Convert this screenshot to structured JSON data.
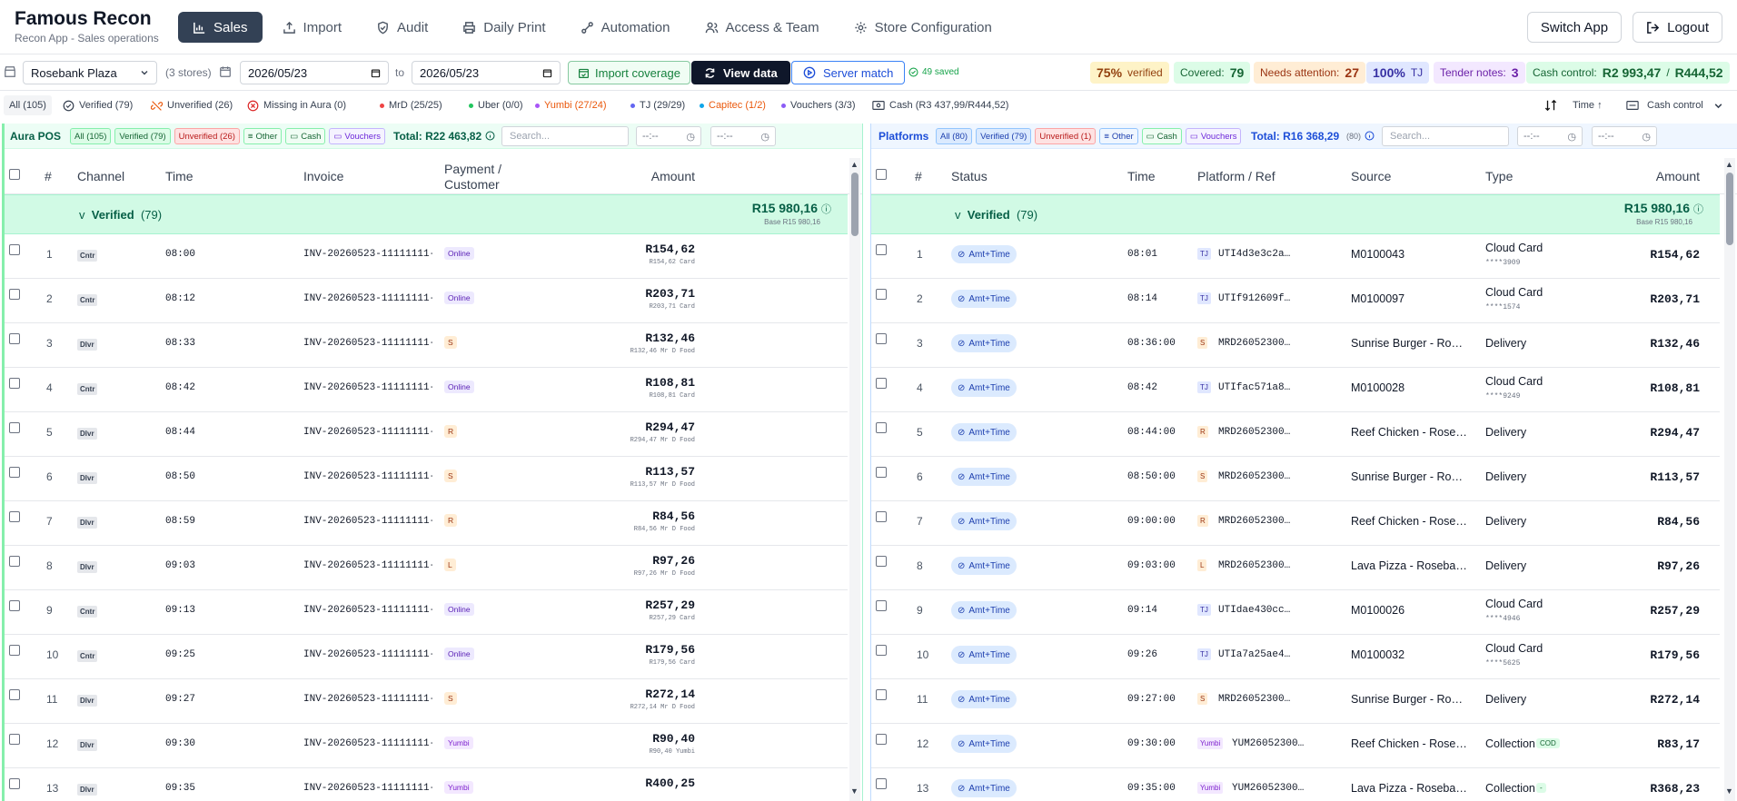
{
  "app": {
    "title": "Famous Recon",
    "subtitle": "Recon App - Sales operations"
  },
  "nav": [
    {
      "label": "Sales",
      "icon": "bar-chart-icon",
      "active": true
    },
    {
      "label": "Import",
      "icon": "upload-icon"
    },
    {
      "label": "Audit",
      "icon": "shield-check-icon"
    },
    {
      "label": "Daily Print",
      "icon": "printer-icon"
    },
    {
      "label": "Automation",
      "icon": "workflow-icon"
    },
    {
      "label": "Access & Team",
      "icon": "users-icon"
    },
    {
      "label": "Store Configuration",
      "icon": "gear-icon"
    }
  ],
  "header_actions": {
    "switch_app": "Switch App",
    "logout": "Logout"
  },
  "filters": {
    "store": "Rosebank Plaza",
    "store_count": "(3 stores)",
    "date_from": "2026/05/23",
    "to_label": "to",
    "date_to": "2026/05/23",
    "import_coverage": "Import coverage",
    "view_data": "View data",
    "server_match": "Server match",
    "saved": "49 saved"
  },
  "stats": {
    "verified_pct": "75%",
    "verified_label": "verified",
    "covered_label": "Covered:",
    "covered": "79",
    "needs_label": "Needs attention:",
    "needs": "27",
    "tj_pct": "100%",
    "tj_label": "TJ",
    "tender_label": "Tender notes:",
    "tender": "3",
    "cash_label": "Cash control:",
    "cash_a": "R2 993,47",
    "cash_sep": "/",
    "cash_b": "R444,52"
  },
  "status_filters": [
    {
      "label": "All (105)"
    },
    {
      "label": "Verified (79)"
    },
    {
      "label": "Unverified (26)"
    },
    {
      "label": "Missing in Aura (0)"
    }
  ],
  "channel_filters": [
    {
      "label": "MrD (25/25)",
      "color": "#ef4444"
    },
    {
      "label": "Uber (0/0)",
      "color": "#22c55e"
    },
    {
      "label": "Yumbi (27/24)",
      "color": "#a855f7"
    },
    {
      "label": "TJ (29/29)",
      "color": "#6366f1"
    },
    {
      "label": "Capitec (1/2)",
      "color": "#0ea5e9"
    },
    {
      "label": "Vouchers (3/3)",
      "color": "#8b5cf6"
    }
  ],
  "cash_chip": "Cash (R3 437,99/R444,52)",
  "sort": "Time ↑",
  "cash_control_menu": "Cash control",
  "left": {
    "title": "Aura POS",
    "chips": [
      "All (105)",
      "Verified (79)",
      "Unverified (26)",
      "Other",
      "Cash",
      "Vouchers"
    ],
    "total": "Total: R22 463,82",
    "search": "Search...",
    "time_ph": "--:--",
    "cols": {
      "num": "#",
      "channel": "Channel",
      "time": "Time",
      "invoice": "Invoice",
      "payment": "Payment /",
      "customer": "Customer",
      "amount": "Amount"
    },
    "group": {
      "label": "Verified",
      "count": "(79)",
      "amount": "R15 980,16",
      "base": "Base R15 980,16"
    },
    "rows": [
      {
        "n": "1",
        "ch": "Cntr",
        "time": "08:00",
        "inv": "INV-20260523-11111111-0",
        "pay": "Online",
        "amt": "R154,62",
        "sub": "R154,62 Card"
      },
      {
        "n": "2",
        "ch": "Cntr",
        "time": "08:12",
        "inv": "INV-20260523-11111111-0",
        "pay": "Online",
        "amt": "R203,71",
        "sub": "R203,71 Card"
      },
      {
        "n": "3",
        "ch": "Dlvr",
        "time": "08:33",
        "inv": "INV-20260523-11111111-0",
        "pay": "S",
        "amt": "R132,46",
        "sub": "R132,46 Mr D Food"
      },
      {
        "n": "4",
        "ch": "Cntr",
        "time": "08:42",
        "inv": "INV-20260523-11111111-0",
        "pay": "Online",
        "amt": "R108,81",
        "sub": "R108,81 Card"
      },
      {
        "n": "5",
        "ch": "Dlvr",
        "time": "08:44",
        "inv": "INV-20260523-11111111-0",
        "pay": "R",
        "amt": "R294,47",
        "sub": "R294,47 Mr D Food"
      },
      {
        "n": "6",
        "ch": "Dlvr",
        "time": "08:50",
        "inv": "INV-20260523-11111111-0",
        "pay": "S",
        "amt": "R113,57",
        "sub": "R113,57 Mr D Food"
      },
      {
        "n": "7",
        "ch": "Dlvr",
        "time": "08:59",
        "inv": "INV-20260523-11111111-0",
        "pay": "R",
        "amt": "R84,56",
        "sub": "R84,56 Mr D Food"
      },
      {
        "n": "8",
        "ch": "Dlvr",
        "time": "09:03",
        "inv": "INV-20260523-11111111-0",
        "pay": "L",
        "amt": "R97,26",
        "sub": "R97,26 Mr D Food"
      },
      {
        "n": "9",
        "ch": "Cntr",
        "time": "09:13",
        "inv": "INV-20260523-11111111-0",
        "pay": "Online",
        "amt": "R257,29",
        "sub": "R257,29 Card"
      },
      {
        "n": "10",
        "ch": "Cntr",
        "time": "09:25",
        "inv": "INV-20260523-11111111-0",
        "pay": "Online",
        "amt": "R179,56",
        "sub": "R179,56 Card"
      },
      {
        "n": "11",
        "ch": "Dlvr",
        "time": "09:27",
        "inv": "INV-20260523-11111111-0",
        "pay": "S",
        "amt": "R272,14",
        "sub": "R272,14 Mr D Food"
      },
      {
        "n": "12",
        "ch": "Dlvr",
        "time": "09:30",
        "inv": "INV-20260523-11111111-0",
        "pay": "Yumbi",
        "amt": "R90,40",
        "sub": "R90,40 Yumbi"
      },
      {
        "n": "13",
        "ch": "Dlvr",
        "time": "09:35",
        "inv": "INV-20260523-11111111-0",
        "pay": "Yumbi",
        "amt": "R400,25",
        "sub": ""
      }
    ]
  },
  "right": {
    "title": "Platforms",
    "chips": [
      "All (80)",
      "Verified (79)",
      "Unverified (1)",
      "Other",
      "Cash",
      "Vouchers"
    ],
    "total": "Total: R16 368,29",
    "total_count": "(80)",
    "search": "Search...",
    "time_ph": "--:--",
    "cols": {
      "num": "#",
      "status": "Status",
      "time": "Time",
      "platform": "Platform / Ref",
      "source": "Source",
      "type": "Type",
      "amount": "Amount"
    },
    "group": {
      "label": "Verified",
      "count": "(79)",
      "amount": "R15 980,16",
      "base": "Base R15 980,16"
    },
    "rows": [
      {
        "n": "1",
        "status": "Amt+Time",
        "time": "08:01",
        "tag": "TJ",
        "ref": "UTI4d3e3c2a…",
        "src": "M0100043",
        "type": "Cloud Card",
        "sub": "****3909",
        "amt": "R154,62"
      },
      {
        "n": "2",
        "status": "Amt+Time",
        "time": "08:14",
        "tag": "TJ",
        "ref": "UTIf912609f…",
        "src": "M0100097",
        "type": "Cloud Card",
        "sub": "****1574",
        "amt": "R203,71"
      },
      {
        "n": "3",
        "status": "Amt+Time",
        "time": "08:36:00",
        "tag": "S",
        "ref": "MRD26052300…",
        "src": "Sunrise Burger - Ro…",
        "type": "Delivery",
        "sub": "",
        "amt": "R132,46"
      },
      {
        "n": "4",
        "status": "Amt+Time",
        "time": "08:42",
        "tag": "TJ",
        "ref": "UTIfac571a8…",
        "src": "M0100028",
        "type": "Cloud Card",
        "sub": "****9249",
        "amt": "R108,81"
      },
      {
        "n": "5",
        "status": "Amt+Time",
        "time": "08:44:00",
        "tag": "R",
        "ref": "MRD26052300…",
        "src": "Reef Chicken - Rose…",
        "type": "Delivery",
        "sub": "",
        "amt": "R294,47"
      },
      {
        "n": "6",
        "status": "Amt+Time",
        "time": "08:50:00",
        "tag": "S",
        "ref": "MRD26052300…",
        "src": "Sunrise Burger - Ro…",
        "type": "Delivery",
        "sub": "",
        "amt": "R113,57"
      },
      {
        "n": "7",
        "status": "Amt+Time",
        "time": "09:00:00",
        "tag": "R",
        "ref": "MRD26052300…",
        "src": "Reef Chicken - Rose…",
        "type": "Delivery",
        "sub": "",
        "amt": "R84,56"
      },
      {
        "n": "8",
        "status": "Amt+Time",
        "time": "09:03:00",
        "tag": "L",
        "ref": "MRD26052300…",
        "src": "Lava Pizza - Roseba…",
        "type": "Delivery",
        "sub": "",
        "amt": "R97,26"
      },
      {
        "n": "9",
        "status": "Amt+Time",
        "time": "09:14",
        "tag": "TJ",
        "ref": "UTIdae430cc…",
        "src": "M0100026",
        "type": "Cloud Card",
        "sub": "****4946",
        "amt": "R257,29"
      },
      {
        "n": "10",
        "status": "Amt+Time",
        "time": "09:26",
        "tag": "TJ",
        "ref": "UTIa7a25ae4…",
        "src": "M0100032",
        "type": "Cloud Card",
        "sub": "****5625",
        "amt": "R179,56"
      },
      {
        "n": "11",
        "status": "Amt+Time",
        "time": "09:27:00",
        "tag": "S",
        "ref": "MRD26052300…",
        "src": "Sunrise Burger - Ro…",
        "type": "Delivery",
        "sub": "",
        "amt": "R272,14"
      },
      {
        "n": "12",
        "status": "Amt+Time",
        "time": "09:30:00",
        "tag": "Yumbi",
        "ref": "YUM26052300…",
        "src": "Reef Chicken - Rose…",
        "type": "Collection",
        "cod": "COD",
        "sub": "",
        "amt": "R83,17"
      },
      {
        "n": "13",
        "status": "Amt+Time",
        "time": "09:35:00",
        "tag": "Yumbi",
        "ref": "YUM26052300…",
        "src": "Lava Pizza - Roseba…",
        "type": "Collection",
        "cod": "-",
        "sub": "",
        "amt": "R368,23"
      }
    ]
  }
}
